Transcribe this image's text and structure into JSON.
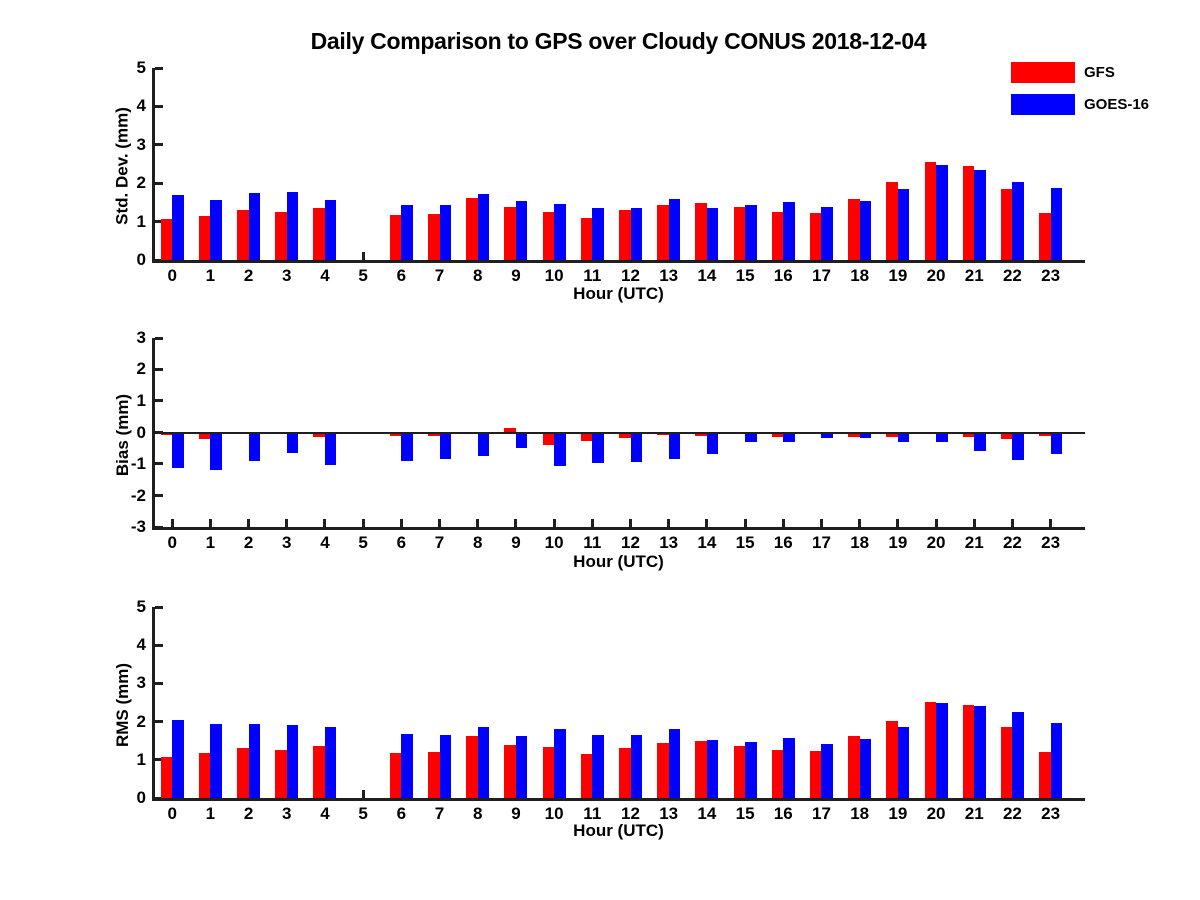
{
  "title": "Daily Comparison to GPS over Cloudy CONUS 2018-12-04",
  "legend": {
    "items": [
      {
        "label": "GFS",
        "color": "#ff0000"
      },
      {
        "label": "GOES-16",
        "color": "#0000ff"
      }
    ]
  },
  "chart_data": [
    {
      "type": "bar",
      "title": "",
      "xlabel": "Hour (UTC)",
      "ylabel": "Std. Dev. (mm)",
      "ylim": [
        0,
        5
      ],
      "yticks": [
        0,
        1,
        2,
        3,
        4,
        5
      ],
      "grid": false,
      "legend_position": "top-right",
      "categories": [
        "0",
        "1",
        "2",
        "3",
        "4",
        "5",
        "6",
        "7",
        "8",
        "9",
        "10",
        "11",
        "12",
        "13",
        "14",
        "15",
        "16",
        "17",
        "18",
        "19",
        "20",
        "21",
        "22",
        "23"
      ],
      "series": [
        {
          "name": "GFS",
          "color": "#ff0000",
          "values": [
            1.07,
            1.15,
            1.3,
            1.25,
            1.36,
            null,
            1.17,
            1.2,
            1.61,
            1.38,
            1.25,
            1.1,
            1.31,
            1.44,
            1.49,
            1.37,
            1.26,
            1.23,
            1.59,
            2.03,
            2.55,
            2.44,
            1.85,
            1.22
          ]
        },
        {
          "name": "GOES-16",
          "color": "#0000ff",
          "values": [
            1.7,
            1.55,
            1.74,
            1.78,
            1.56,
            null,
            1.43,
            1.43,
            1.72,
            1.53,
            1.46,
            1.35,
            1.35,
            1.59,
            1.36,
            1.44,
            1.52,
            1.39,
            1.54,
            1.85,
            2.48,
            2.34,
            2.03,
            1.87
          ]
        }
      ]
    },
    {
      "type": "bar",
      "title": "",
      "xlabel": "Hour (UTC)",
      "ylabel": "Bias (mm)",
      "ylim": [
        -3,
        3
      ],
      "yticks": [
        -3,
        -2,
        -1,
        0,
        1,
        2,
        3
      ],
      "grid": false,
      "zero_line": true,
      "categories": [
        "0",
        "1",
        "2",
        "3",
        "4",
        "5",
        "6",
        "7",
        "8",
        "9",
        "10",
        "11",
        "12",
        "13",
        "14",
        "15",
        "16",
        "17",
        "18",
        "19",
        "20",
        "21",
        "22",
        "23"
      ],
      "series": [
        {
          "name": "GFS",
          "color": "#ff0000",
          "values": [
            -0.08,
            -0.2,
            -0.04,
            0.03,
            -0.14,
            null,
            -0.1,
            -0.12,
            -0.05,
            0.15,
            -0.4,
            -0.28,
            -0.18,
            -0.07,
            -0.1,
            -0.03,
            -0.14,
            -0.06,
            -0.15,
            -0.14,
            -0.06,
            -0.15,
            -0.2,
            -0.1
          ]
        },
        {
          "name": "GOES-16",
          "color": "#0000ff",
          "values": [
            -1.13,
            -1.2,
            -0.9,
            -0.66,
            -1.02,
            null,
            -0.9,
            -0.84,
            -0.76,
            -0.49,
            -1.07,
            -0.97,
            -0.94,
            -0.85,
            -0.67,
            -0.3,
            -0.31,
            -0.17,
            -0.19,
            -0.3,
            -0.29,
            -0.6,
            -0.88,
            -0.68
          ]
        }
      ]
    },
    {
      "type": "bar",
      "title": "",
      "xlabel": "Hour (UTC)",
      "ylabel": "RMS (mm)",
      "ylim": [
        0,
        5
      ],
      "yticks": [
        0,
        1,
        2,
        3,
        4,
        5
      ],
      "grid": false,
      "categories": [
        "0",
        "1",
        "2",
        "3",
        "4",
        "5",
        "6",
        "7",
        "8",
        "9",
        "10",
        "11",
        "12",
        "13",
        "14",
        "15",
        "16",
        "17",
        "18",
        "19",
        "20",
        "21",
        "22",
        "23"
      ],
      "series": [
        {
          "name": "GFS",
          "color": "#ff0000",
          "values": [
            1.08,
            1.17,
            1.31,
            1.26,
            1.36,
            null,
            1.17,
            1.21,
            1.62,
            1.38,
            1.33,
            1.15,
            1.31,
            1.44,
            1.5,
            1.36,
            1.26,
            1.23,
            1.62,
            2.01,
            2.52,
            2.44,
            1.85,
            1.2
          ]
        },
        {
          "name": "GOES-16",
          "color": "#0000ff",
          "values": [
            2.03,
            1.95,
            1.95,
            1.9,
            1.85,
            null,
            1.67,
            1.64,
            1.85,
            1.62,
            1.8,
            1.64,
            1.64,
            1.8,
            1.52,
            1.46,
            1.56,
            1.41,
            1.55,
            1.87,
            2.49,
            2.41,
            2.24,
            1.97
          ]
        }
      ]
    }
  ]
}
